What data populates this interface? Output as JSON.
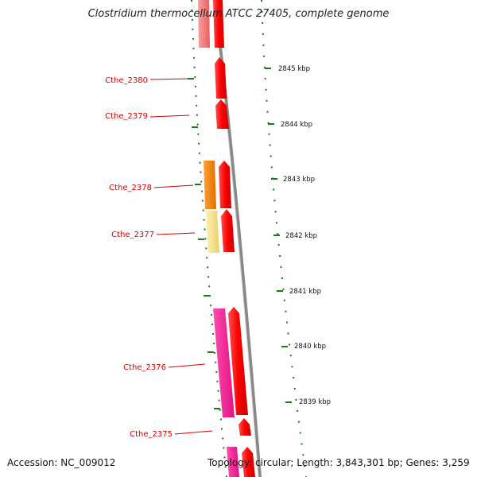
{
  "title": "Clostridium thermocellum ATCC 27405, complete genome",
  "footer": {
    "accession": "Accession: NC_009012",
    "stats": "Topology: circular; Length: 3,843,301 bp; Genes: 3,259"
  },
  "colors": {
    "gene_label": "#d40000",
    "cds_forward": "#ff0000",
    "backbone": "#888888",
    "tick_green": "#1a7a1a",
    "gene_orange": "#f08000",
    "gene_pale_yellow": "#f0e088",
    "gene_magenta": "#ff1493",
    "gene_pink_faded": "#f07878"
  },
  "gene_labels": [
    "Cthe_2380",
    "Cthe_2379",
    "Cthe_2378",
    "Cthe_2377",
    "Cthe_2376",
    "Cthe_2375"
  ],
  "kbp_labels": [
    "2845 kbp",
    "2844 kbp",
    "2843 kbp",
    "2842 kbp",
    "2841 kbp",
    "2840 kbp",
    "2839 kbp"
  ]
}
